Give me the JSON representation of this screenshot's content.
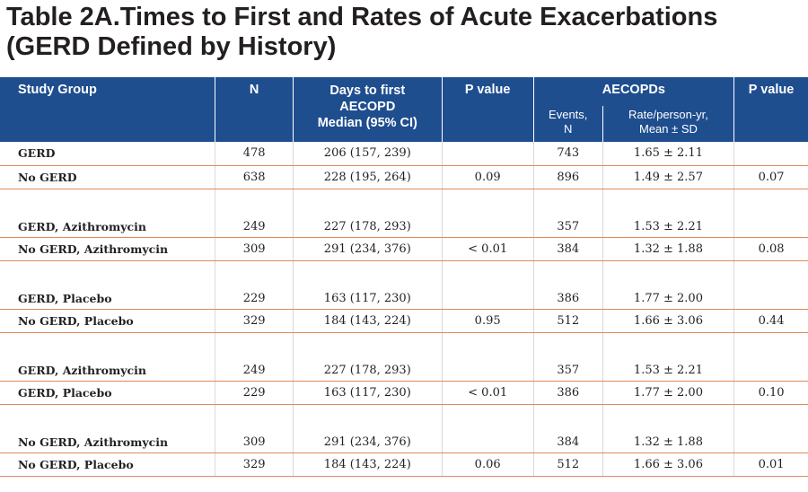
{
  "title": {
    "line1": "Table 2A.Times to First and Rates of Acute Exacerbations",
    "line2": "(GERD Defined by History)"
  },
  "header": {
    "study_group": "Study Group",
    "n": "N",
    "days_line1": "Days to first",
    "days_line2": "AECOPD",
    "days_line3": "Median (95% CI)",
    "p_value_1": "P value",
    "aecopds": "AECOPDs",
    "p_value_2": "P value",
    "events_line1": "Events,",
    "events_line2": "N",
    "rate_line1": "Rate/person-yr,",
    "rate_line2": "Mean ± SD"
  },
  "rows": [
    {
      "group": "GERD",
      "n": "478",
      "days": "206 (157, 239)",
      "p1": "",
      "events": "743",
      "rate": "1.65 ± 2.11",
      "p2": ""
    },
    {
      "group": "No GERD",
      "n": "638",
      "days": "228 (195, 264)",
      "p1": "0.09",
      "events": "896",
      "rate": "1.49 ± 2.57",
      "p2": "0.07"
    },
    {
      "group": "GERD, Azithromycin",
      "n": "249",
      "days": "227 (178, 293)",
      "p1": "",
      "events": "357",
      "rate": "1.53 ± 2.21",
      "p2": ""
    },
    {
      "group": "No GERD, Azithromycin",
      "n": "309",
      "days": "291 (234, 376)",
      "p1": "< 0.01",
      "events": "384",
      "rate": "1.32 ± 1.88",
      "p2": "0.08"
    },
    {
      "group": "GERD, Placebo",
      "n": "229",
      "days": "163 (117, 230)",
      "p1": "",
      "events": "386",
      "rate": "1.77 ± 2.00",
      "p2": ""
    },
    {
      "group": "No GERD, Placebo",
      "n": "329",
      "days": "184 (143, 224)",
      "p1": "0.95",
      "events": "512",
      "rate": "1.66 ± 3.06",
      "p2": "0.44"
    },
    {
      "group": "GERD, Azithromycin",
      "n": "249",
      "days": "227 (178, 293)",
      "p1": "",
      "events": "357",
      "rate": "1.53 ± 2.21",
      "p2": ""
    },
    {
      "group": "GERD, Placebo",
      "n": "229",
      "days": "163 (117, 230)",
      "p1": "< 0.01",
      "events": "386",
      "rate": "1.77 ± 2.00",
      "p2": "0.10"
    },
    {
      "group": "No GERD, Azithromycin",
      "n": "309",
      "days": "291 (234, 376)",
      "p1": "",
      "events": "384",
      "rate": "1.32 ± 1.88",
      "p2": ""
    },
    {
      "group": "No GERD, Placebo",
      "n": "329",
      "days": "184 (143, 224)",
      "p1": "0.06",
      "events": "512",
      "rate": "1.66 ± 3.06",
      "p2": "0.01"
    }
  ]
}
